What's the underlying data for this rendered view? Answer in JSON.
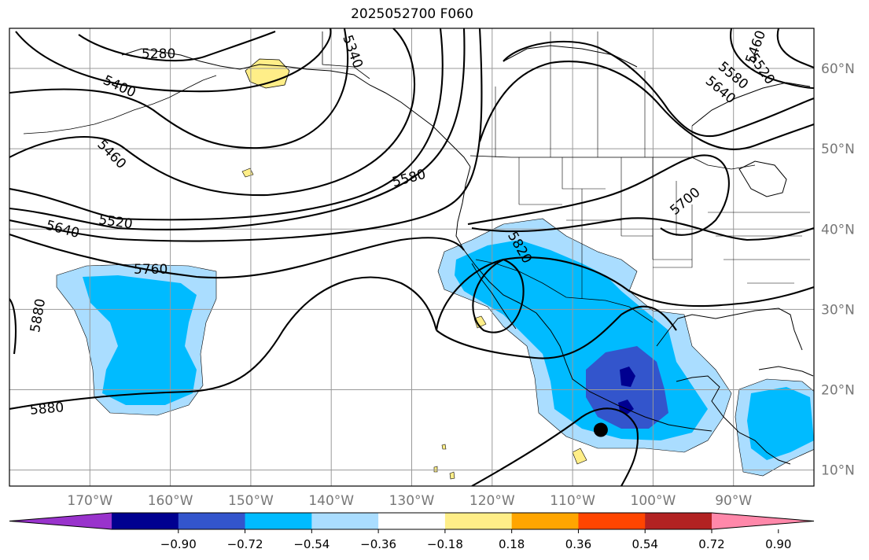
{
  "title": "2025052700 F060",
  "map": {
    "lon_range": [
      -180,
      -80
    ],
    "lat_range": [
      8,
      65
    ],
    "lon_ticks": [
      {
        "value": -170,
        "label": "170°W"
      },
      {
        "value": -160,
        "label": "160°W"
      },
      {
        "value": -150,
        "label": "150°W"
      },
      {
        "value": -140,
        "label": "140°W"
      },
      {
        "value": -130,
        "label": "130°W"
      },
      {
        "value": -120,
        "label": "120°W"
      },
      {
        "value": -110,
        "label": "110°W"
      },
      {
        "value": -100,
        "label": "100°W"
      },
      {
        "value": -90,
        "label": "90°W"
      }
    ],
    "lat_ticks": [
      {
        "value": 10,
        "label": "10°N"
      },
      {
        "value": 20,
        "label": "20°N"
      },
      {
        "value": 30,
        "label": "30°N"
      },
      {
        "value": 40,
        "label": "40°N"
      },
      {
        "value": 50,
        "label": "50°N"
      },
      {
        "value": 60,
        "label": "60°N"
      }
    ],
    "grid": true,
    "contour_labels": [
      "5280",
      "5340",
      "5400",
      "5460",
      "5520",
      "5580",
      "5640",
      "5700",
      "5760",
      "5820",
      "5880"
    ],
    "marker": {
      "lon": -106.5,
      "lat": 15.0,
      "color": "#000000"
    }
  },
  "colorbar": {
    "ticks": [
      "−0.90",
      "−0.72",
      "−0.54",
      "−0.36",
      "−0.18",
      "0.18",
      "0.36",
      "0.54",
      "0.72",
      "0.90"
    ],
    "colors": [
      "#9933cc",
      "#000090",
      "#3355cc",
      "#00bbff",
      "#aaddff",
      "#ffffff",
      "#ffee88",
      "#ffa500",
      "#ff4500",
      "#b22222",
      "#ff88aa"
    ]
  }
}
